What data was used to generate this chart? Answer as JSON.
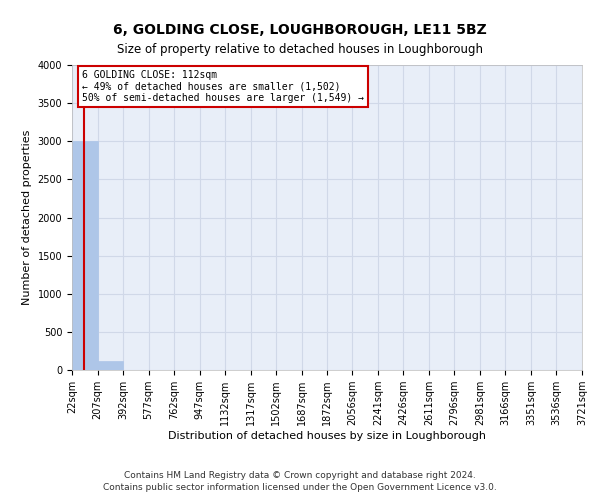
{
  "title": "6, GOLDING CLOSE, LOUGHBOROUGH, LE11 5BZ",
  "subtitle": "Size of property relative to detached houses in Loughborough",
  "xlabel": "Distribution of detached houses by size in Loughborough",
  "ylabel": "Number of detached properties",
  "footnote1": "Contains HM Land Registry data © Crown copyright and database right 2024.",
  "footnote2": "Contains public sector information licensed under the Open Government Licence v3.0.",
  "bar_edges": [
    22,
    207,
    392,
    577,
    762,
    947,
    1132,
    1317,
    1502,
    1687,
    1872,
    2056,
    2241,
    2426,
    2611,
    2796,
    2981,
    3166,
    3351,
    3536,
    3721
  ],
  "bar_heights": [
    3000,
    115,
    0,
    0,
    0,
    0,
    0,
    0,
    0,
    0,
    0,
    0,
    0,
    0,
    0,
    0,
    0,
    0,
    0,
    0
  ],
  "bar_color": "#aec6e8",
  "bar_edge_color": "#aec6e8",
  "grid_color": "#d0d8e8",
  "background_color": "#e8eef8",
  "property_size": 112,
  "annotation_title": "6 GOLDING CLOSE: 112sqm",
  "annotation_line1": "← 49% of detached houses are smaller (1,502)",
  "annotation_line2": "50% of semi-detached houses are larger (1,549) →",
  "vline_color": "#cc0000",
  "annotation_box_color": "#ffffff",
  "annotation_box_edge_color": "#cc0000",
  "ylim": [
    0,
    4000
  ],
  "yticks": [
    0,
    500,
    1000,
    1500,
    2000,
    2500,
    3000,
    3500,
    4000
  ],
  "title_fontsize": 10,
  "subtitle_fontsize": 8.5,
  "xlabel_fontsize": 8,
  "ylabel_fontsize": 8,
  "tick_fontsize": 7,
  "annotation_fontsize": 7,
  "footnote_fontsize": 6.5
}
